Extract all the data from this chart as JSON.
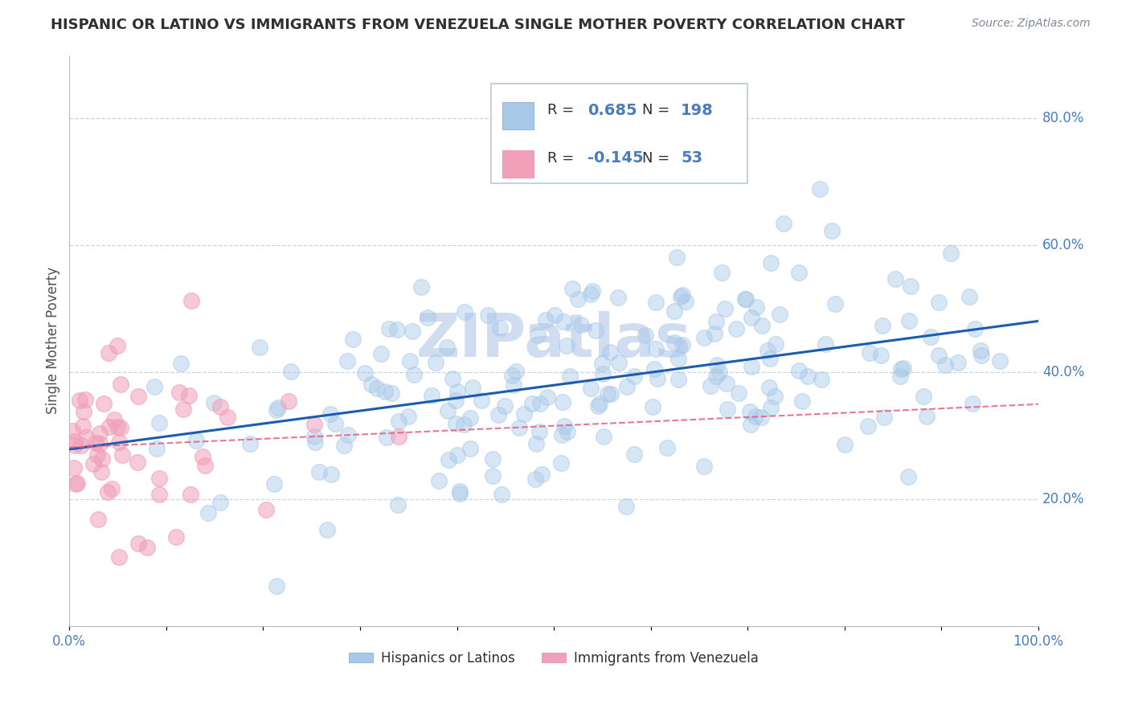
{
  "title": "HISPANIC OR LATINO VS IMMIGRANTS FROM VENEZUELA SINGLE MOTHER POVERTY CORRELATION CHART",
  "source": "Source: ZipAtlas.com",
  "ylabel": "Single Mother Poverty",
  "r_blue": 0.685,
  "n_blue": 198,
  "r_pink": -0.145,
  "n_pink": 53,
  "blue_color": "#A8C8E8",
  "pink_color": "#F0A0B8",
  "blue_line_color": "#1A5CB0",
  "pink_line_color": "#E06080",
  "background_color": "#FFFFFF",
  "grid_color": "#C8D4E4",
  "title_color": "#303030",
  "axis_label_color": "#4A7CC0",
  "watermark_color": "#D0DCF0",
  "watermark": "ZIPatlas",
  "legend_labels": [
    "Hispanics or Latinos",
    "Immigrants from Venezuela"
  ],
  "xlim": [
    0.0,
    1.0
  ],
  "ylim": [
    0.0,
    0.9
  ],
  "yticks": [
    0.2,
    0.4,
    0.6,
    0.8
  ],
  "blue_seed": 17,
  "pink_seed": 77
}
